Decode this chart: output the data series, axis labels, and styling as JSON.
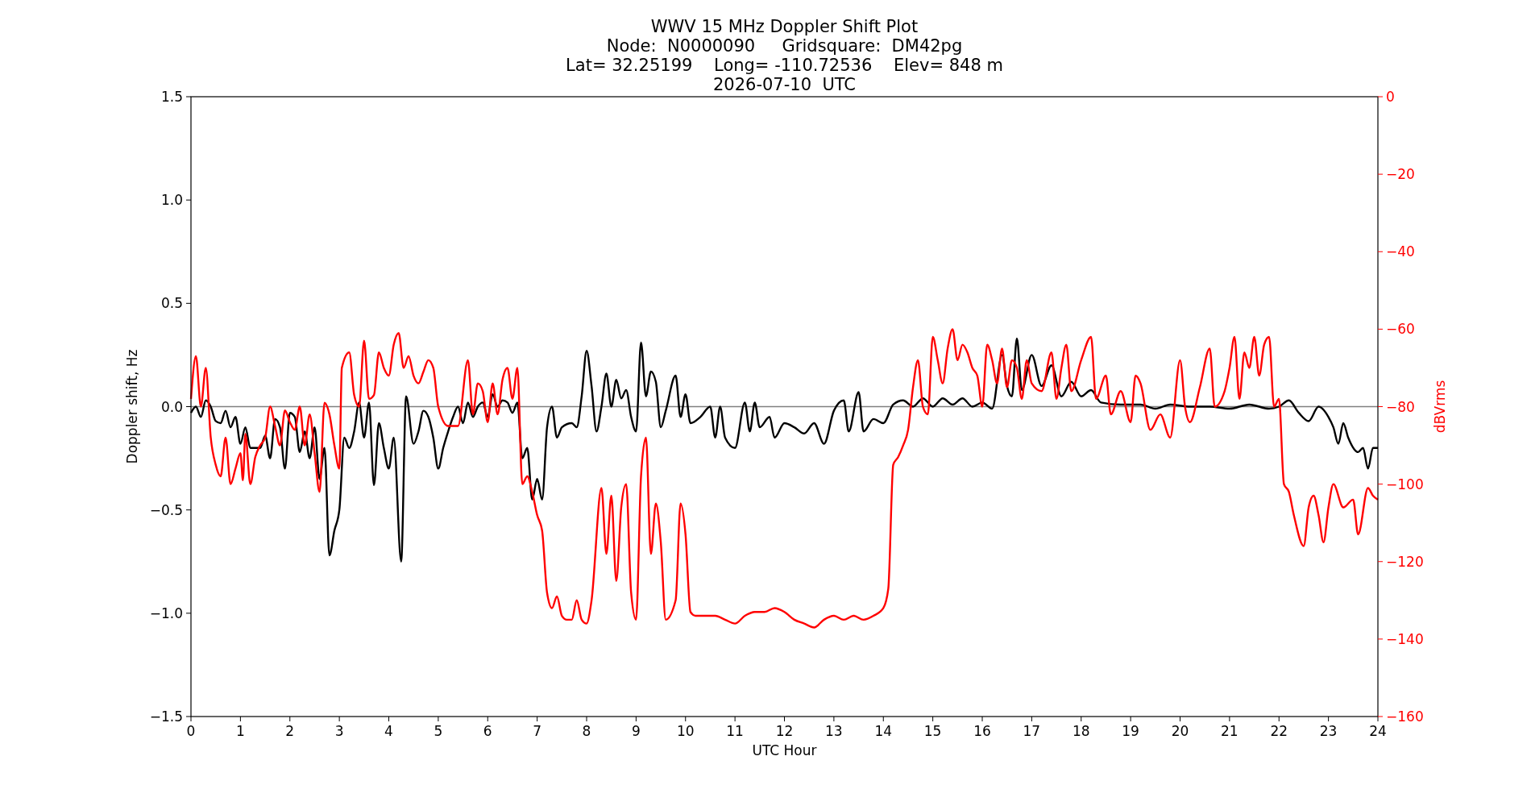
{
  "chart_data": {
    "type": "line",
    "title": "WWV 15 MHz Doppler Shift Plot",
    "subtitle": "Node:  N0000090     Gridsquare:  DM42pg\nLat= 32.25199    Long= -110.72536    Elev= 848 m\n2026-07-10  UTC",
    "xlabel": "UTC Hour",
    "ylabel": "Doppler shift, Hz",
    "y2label": "dBVrms",
    "xlim": [
      0,
      24
    ],
    "xticks": [
      0,
      1,
      2,
      3,
      4,
      5,
      6,
      7,
      8,
      9,
      10,
      11,
      12,
      13,
      14,
      15,
      16,
      17,
      18,
      19,
      20,
      21,
      22,
      23,
      24
    ],
    "ylim": [
      -1.5,
      1.5
    ],
    "yticks": [
      {
        "value": -1.5,
        "label": "−1.5"
      },
      {
        "value": -1.0,
        "label": "−1.0"
      },
      {
        "value": -0.5,
        "label": "−0.5"
      },
      {
        "value": 0,
        "label": "0.0"
      },
      {
        "value": 0.5,
        "label": "0.5"
      },
      {
        "value": 1.0,
        "label": "1.0"
      },
      {
        "value": 1.5,
        "label": "1.5"
      }
    ],
    "y2lim": [
      -160,
      0
    ],
    "y2ticks": [
      {
        "value": -160,
        "label": "−160"
      },
      {
        "value": -140,
        "label": "−140"
      },
      {
        "value": -120,
        "label": "−120"
      },
      {
        "value": -100,
        "label": "−100"
      },
      {
        "value": -80,
        "label": "−80"
      },
      {
        "value": -60,
        "label": "−60"
      },
      {
        "value": -40,
        "label": "−40"
      },
      {
        "value": -20,
        "label": "−20"
      },
      0
    ],
    "grid": false,
    "ref_lines": [
      {
        "axis": "y",
        "value": 0,
        "color": "#808080"
      }
    ],
    "series": [
      {
        "color": "#000000",
        "x": [
          0,
          0.1,
          0.2,
          0.3,
          0.4,
          0.5,
          0.6,
          0.7,
          0.8,
          0.9,
          1,
          1.1,
          1.2,
          1.4,
          1.5,
          1.6,
          1.7,
          1.8,
          1.9,
          2,
          2.1,
          2.2,
          2.3,
          2.4,
          2.5,
          2.6,
          2.7,
          2.8,
          2.9,
          3,
          3.1,
          3.2,
          3.3,
          3.4,
          3.5,
          3.6,
          3.7,
          3.8,
          3.9,
          4,
          4.1,
          4.25,
          4.35,
          4.5,
          4.6,
          4.7,
          4.8,
          4.9,
          5,
          5.1,
          5.2,
          5.3,
          5.4,
          5.5,
          5.6,
          5.7,
          5.8,
          5.9,
          6,
          6.1,
          6.2,
          6.3,
          6.4,
          6.5,
          6.6,
          6.7,
          6.8,
          6.9,
          7,
          7.1,
          7.2,
          7.3,
          7.4,
          7.5,
          7.7,
          7.8,
          7.9,
          8,
          8.1,
          8.2,
          8.3,
          8.4,
          8.5,
          8.6,
          8.7,
          8.8,
          8.9,
          9,
          9.1,
          9.2,
          9.3,
          9.4,
          9.5,
          9.6,
          9.8,
          9.9,
          10,
          10.1,
          10.3,
          10.5,
          10.6,
          10.7,
          10.8,
          11,
          11.2,
          11.3,
          11.4,
          11.5,
          11.7,
          11.8,
          12,
          12.2,
          12.4,
          12.6,
          12.8,
          13,
          13.2,
          13.3,
          13.5,
          13.6,
          13.8,
          14,
          14.2,
          14.4,
          14.6,
          14.8,
          15,
          15.2,
          15.4,
          15.6,
          15.8,
          16,
          16.2,
          16.4,
          16.5,
          16.6,
          16.7,
          16.8,
          17,
          17.2,
          17.4,
          17.6,
          17.8,
          18,
          18.2,
          18.4,
          18.8,
          19.2,
          19.5,
          19.8,
          20.2,
          20.6,
          21,
          21.4,
          21.8,
          22,
          22.2,
          22.4,
          22.6,
          22.8,
          23,
          23.1,
          23.2,
          23.3,
          23.4,
          23.6,
          23.7,
          23.8,
          23.9,
          24
        ],
        "values": [
          -0.03,
          0,
          -0.05,
          0.03,
          0,
          -0.07,
          -0.08,
          -0.02,
          -0.1,
          -0.05,
          -0.18,
          -0.1,
          -0.2,
          -0.2,
          -0.14,
          -0.25,
          -0.06,
          -0.1,
          -0.3,
          -0.03,
          -0.05,
          -0.22,
          -0.12,
          -0.25,
          -0.1,
          -0.35,
          -0.2,
          -0.72,
          -0.6,
          -0.5,
          -0.15,
          -0.2,
          -0.12,
          0.02,
          -0.15,
          0.02,
          -0.38,
          -0.08,
          -0.2,
          -0.3,
          -0.15,
          -0.75,
          0.05,
          -0.18,
          -0.12,
          -0.02,
          -0.05,
          -0.15,
          -0.3,
          -0.2,
          -0.12,
          -0.05,
          0,
          -0.08,
          0.02,
          -0.05,
          0,
          0.02,
          -0.05,
          0.06,
          0,
          0.03,
          0.02,
          -0.03,
          0.02,
          -0.25,
          -0.2,
          -0.45,
          -0.35,
          -0.45,
          -0.1,
          0,
          -0.15,
          -0.1,
          -0.08,
          -0.1,
          0.05,
          0.27,
          0.1,
          -0.12,
          0,
          0.16,
          0,
          0.13,
          0.04,
          0.08,
          -0.05,
          -0.12,
          0.31,
          0.05,
          0.17,
          0.12,
          -0.1,
          -0.02,
          0.15,
          -0.05,
          0.06,
          -0.08,
          -0.05,
          0,
          -0.15,
          0,
          -0.15,
          -0.2,
          0.02,
          -0.12,
          0.02,
          -0.1,
          -0.05,
          -0.15,
          -0.08,
          -0.1,
          -0.13,
          -0.08,
          -0.18,
          -0.02,
          0.03,
          -0.12,
          0.07,
          -0.12,
          -0.06,
          -0.08,
          0.01,
          0.03,
          0,
          0.04,
          0,
          0.04,
          0.01,
          0.04,
          0,
          0.02,
          -0.01,
          0.25,
          0.1,
          0.05,
          0.33,
          0.08,
          0.25,
          0.1,
          0.2,
          0.05,
          0.12,
          0.05,
          0.08,
          0.02,
          0.01,
          0.01,
          -0.01,
          0.01,
          0,
          0,
          -0.01,
          0.01,
          -0.01,
          0,
          0.03,
          -0.03,
          -0.07,
          0,
          -0.05,
          -0.1,
          -0.18,
          -0.08,
          -0.15,
          -0.22,
          -0.2,
          -0.3,
          -0.2,
          -0.2
        ]
      },
      {
        "color": "#ff0000",
        "axis": "y2",
        "x": [
          0,
          0.1,
          0.2,
          0.3,
          0.4,
          0.5,
          0.6,
          0.7,
          0.8,
          0.9,
          1,
          1.05,
          1.1,
          1.2,
          1.3,
          1.4,
          1.5,
          1.6,
          1.7,
          1.8,
          1.9,
          2,
          2.1,
          2.2,
          2.3,
          2.4,
          2.5,
          2.6,
          2.7,
          2.8,
          2.9,
          3,
          3.05,
          3.2,
          3.3,
          3.4,
          3.5,
          3.6,
          3.7,
          3.8,
          3.9,
          4,
          4.1,
          4.2,
          4.3,
          4.4,
          4.5,
          4.6,
          4.7,
          4.8,
          4.9,
          5,
          5.2,
          5.4,
          5.6,
          5.7,
          5.8,
          5.9,
          6,
          6.1,
          6.2,
          6.3,
          6.4,
          6.5,
          6.6,
          6.7,
          6.8,
          6.9,
          7,
          7.1,
          7.2,
          7.3,
          7.4,
          7.5,
          7.6,
          7.7,
          7.8,
          7.9,
          8,
          8.1,
          8.3,
          8.4,
          8.5,
          8.6,
          8.7,
          8.8,
          8.9,
          9,
          9.1,
          9.2,
          9.3,
          9.4,
          9.5,
          9.6,
          9.8,
          9.9,
          10,
          10.1,
          10.2,
          10.4,
          10.6,
          10.8,
          11,
          11.2,
          11.4,
          11.6,
          11.8,
          12,
          12.2,
          12.4,
          12.6,
          12.8,
          13,
          13.2,
          13.4,
          13.6,
          13.8,
          14,
          14.1,
          14.2,
          14.3,
          14.4,
          14.5,
          14.6,
          14.7,
          14.8,
          14.9,
          15,
          15.1,
          15.2,
          15.3,
          15.4,
          15.5,
          15.6,
          15.7,
          15.8,
          15.9,
          16,
          16.1,
          16.2,
          16.3,
          16.4,
          16.5,
          16.6,
          16.7,
          16.8,
          16.9,
          17,
          17.2,
          17.4,
          17.5,
          17.6,
          17.7,
          17.8,
          18,
          18.2,
          18.3,
          18.5,
          18.6,
          18.8,
          19,
          19.1,
          19.2,
          19.4,
          19.6,
          19.8,
          20,
          20.1,
          20.2,
          20.4,
          20.6,
          20.7,
          20.9,
          21,
          21.1,
          21.2,
          21.3,
          21.4,
          21.5,
          21.6,
          21.7,
          21.8,
          21.9,
          22,
          22.1,
          22.2,
          22.3,
          22.5,
          22.6,
          22.7,
          22.8,
          22.9,
          23,
          23.1,
          23.3,
          23.5,
          23.6,
          23.8,
          23.9,
          24
        ],
        "values": [
          -78,
          -67,
          -80,
          -70,
          -88,
          -95,
          -98,
          -88,
          -100,
          -96,
          -92,
          -99,
          -87,
          -100,
          -93,
          -90,
          -88,
          -80,
          -85,
          -90,
          -81,
          -84,
          -86,
          -80,
          -90,
          -82,
          -92,
          -102,
          -79,
          -82,
          -90,
          -96,
          -70,
          -66,
          -77,
          -80,
          -63,
          -78,
          -77,
          -66,
          -70,
          -72,
          -64,
          -61,
          -70,
          -67,
          -72,
          -74,
          -71,
          -68,
          -70,
          -80,
          -85,
          -85,
          -68,
          -82,
          -74,
          -76,
          -84,
          -74,
          -82,
          -73,
          -70,
          -78,
          -70,
          -100,
          -98,
          -102,
          -108,
          -112,
          -128,
          -132,
          -129,
          -134,
          -135,
          -135,
          -130,
          -135,
          -136,
          -130,
          -101,
          -118,
          -103,
          -125,
          -106,
          -100,
          -128,
          -135,
          -98,
          -88,
          -118,
          -105,
          -115,
          -135,
          -130,
          -105,
          -113,
          -133,
          -134,
          -134,
          -134,
          -135,
          -136,
          -134,
          -133,
          -133,
          -132,
          -133,
          -135,
          -136,
          -137,
          -135,
          -134,
          -135,
          -134,
          -135,
          -134,
          -132,
          -127,
          -95,
          -93,
          -90,
          -86,
          -75,
          -68,
          -80,
          -82,
          -62,
          -68,
          -74,
          -65,
          -60,
          -68,
          -64,
          -66,
          -70,
          -72,
          -80,
          -64,
          -68,
          -74,
          -65,
          -75,
          -68,
          -70,
          -78,
          -68,
          -74,
          -76,
          -66,
          -78,
          -70,
          -64,
          -76,
          -68,
          -62,
          -78,
          -72,
          -82,
          -76,
          -84,
          -72,
          -74,
          -86,
          -82,
          -88,
          -68,
          -80,
          -84,
          -75,
          -65,
          -80,
          -76,
          -70,
          -62,
          -78,
          -66,
          -70,
          -62,
          -72,
          -64,
          -62,
          -80,
          -78,
          -100,
          -102,
          -108,
          -116,
          -106,
          -103,
          -108,
          -115,
          -106,
          -100,
          -106,
          -104,
          -113,
          -101,
          -103,
          -104
        ]
      }
    ]
  }
}
